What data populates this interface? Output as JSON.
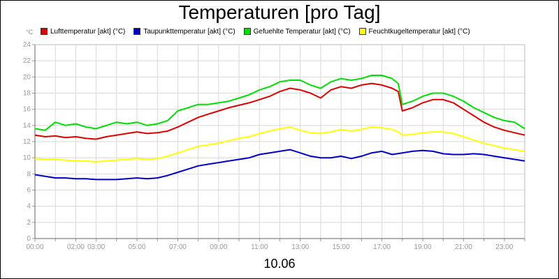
{
  "chart_data": {
    "type": "line",
    "title": "Temperaturen [pro Tag]",
    "unit_label": "°C",
    "date_label": "10.06",
    "xlim": [
      0,
      24
    ],
    "ylim": [
      0,
      24
    ],
    "y_ticks": [
      0,
      2,
      4,
      6,
      8,
      10,
      12,
      14,
      16,
      18,
      20,
      22,
      24
    ],
    "x_ticks": [
      {
        "h": 0,
        "label": "00:00"
      },
      {
        "h": 2,
        "label": "02:00"
      },
      {
        "h": 3,
        "label": "03:00"
      },
      {
        "h": 5,
        "label": "05:00"
      },
      {
        "h": 7,
        "label": "07:00"
      },
      {
        "h": 9,
        "label": "09:00"
      },
      {
        "h": 11,
        "label": "11:00"
      },
      {
        "h": 13,
        "label": "13:00"
      },
      {
        "h": 15,
        "label": "15:00"
      },
      {
        "h": 17,
        "label": "17:00"
      },
      {
        "h": 19,
        "label": "19:00"
      },
      {
        "h": 21,
        "label": "21:00"
      },
      {
        "h": 23,
        "label": "23:00"
      }
    ],
    "grid": true,
    "legend_position": "top",
    "series": [
      {
        "name": "Lufttemperatur [akt] (°C)",
        "color": "#e00000",
        "x": [
          0,
          0.5,
          1,
          1.5,
          2,
          2.5,
          3,
          3.5,
          4,
          4.5,
          5,
          5.5,
          6,
          6.5,
          7,
          7.5,
          8,
          8.5,
          9,
          9.5,
          10,
          10.5,
          11,
          11.5,
          12,
          12.5,
          13,
          13.5,
          14,
          14.5,
          15,
          15.5,
          16,
          16.5,
          17,
          17.5,
          17.8,
          18,
          18.5,
          19,
          19.5,
          20,
          20.5,
          21,
          21.5,
          22,
          22.5,
          23,
          23.5,
          24
        ],
        "y": [
          12.8,
          12.6,
          12.7,
          12.5,
          12.6,
          12.4,
          12.3,
          12.6,
          12.8,
          13.0,
          13.2,
          13.0,
          13.1,
          13.3,
          13.8,
          14.4,
          15.0,
          15.4,
          15.8,
          16.2,
          16.5,
          16.8,
          17.2,
          17.6,
          18.2,
          18.6,
          18.4,
          18.0,
          17.4,
          18.4,
          18.8,
          18.6,
          19.0,
          19.2,
          19.0,
          18.6,
          18.2,
          15.8,
          16.2,
          16.8,
          17.2,
          17.2,
          16.8,
          16.0,
          15.2,
          14.4,
          13.8,
          13.4,
          13.1,
          12.8
        ]
      },
      {
        "name": "Taupunkttemperatur [akt] (°C)",
        "color": "#0000cc",
        "x": [
          0,
          0.5,
          1,
          1.5,
          2,
          2.5,
          3,
          3.5,
          4,
          4.5,
          5,
          5.5,
          6,
          6.5,
          7,
          7.5,
          8,
          8.5,
          9,
          9.5,
          10,
          10.5,
          11,
          11.5,
          12,
          12.5,
          13,
          13.5,
          14,
          14.5,
          15,
          15.5,
          16,
          16.5,
          17,
          17.5,
          18,
          18.5,
          19,
          19.5,
          20,
          20.5,
          21,
          21.5,
          22,
          22.5,
          23,
          23.5,
          24
        ],
        "y": [
          7.9,
          7.7,
          7.5,
          7.5,
          7.4,
          7.4,
          7.3,
          7.3,
          7.3,
          7.4,
          7.5,
          7.4,
          7.5,
          7.8,
          8.2,
          8.6,
          9.0,
          9.2,
          9.4,
          9.6,
          9.8,
          10.0,
          10.4,
          10.6,
          10.8,
          11.0,
          10.6,
          10.2,
          10.0,
          10.0,
          10.2,
          9.9,
          10.2,
          10.6,
          10.8,
          10.4,
          10.6,
          10.8,
          10.9,
          10.8,
          10.5,
          10.4,
          10.4,
          10.5,
          10.4,
          10.2,
          10.0,
          9.8,
          9.6
        ]
      },
      {
        "name": "Gefuehlte Temperatur [akt] (°C)",
        "color": "#00e000",
        "x": [
          0,
          0.5,
          1,
          1.5,
          2,
          2.5,
          3,
          3.5,
          4,
          4.5,
          5,
          5.5,
          6,
          6.5,
          7,
          7.5,
          8,
          8.5,
          9,
          9.5,
          10,
          10.5,
          11,
          11.5,
          12,
          12.5,
          13,
          13.5,
          14,
          14.5,
          15,
          15.5,
          16,
          16.5,
          17,
          17.5,
          17.8,
          18,
          18.5,
          19,
          19.5,
          20,
          20.5,
          21,
          21.5,
          22,
          22.5,
          23,
          23.5,
          24
        ],
        "y": [
          13.6,
          13.4,
          14.4,
          14.0,
          14.2,
          13.8,
          13.6,
          14.0,
          14.4,
          14.2,
          14.4,
          14.0,
          14.2,
          14.6,
          15.8,
          16.2,
          16.6,
          16.6,
          16.8,
          17.0,
          17.4,
          17.8,
          18.4,
          18.8,
          19.4,
          19.6,
          19.6,
          19.0,
          18.6,
          19.4,
          19.8,
          19.6,
          19.8,
          20.2,
          20.2,
          19.8,
          19.2,
          16.6,
          17.0,
          17.6,
          18.0,
          18.0,
          17.6,
          17.0,
          16.2,
          15.6,
          15.0,
          14.6,
          14.4,
          13.6
        ]
      },
      {
        "name": "Feuchtkugeltemperatur [akt] (°C)",
        "color": "#ffff00",
        "x": [
          0,
          0.5,
          1,
          1.5,
          2,
          2.5,
          3,
          3.5,
          4,
          4.5,
          5,
          5.5,
          6,
          6.5,
          7,
          7.5,
          8,
          8.5,
          9,
          9.5,
          10,
          10.5,
          11,
          11.5,
          12,
          12.5,
          13,
          13.5,
          14,
          14.5,
          15,
          15.5,
          16,
          16.5,
          17,
          17.5,
          17.8,
          18,
          18.5,
          19,
          19.5,
          20,
          20.5,
          21,
          21.5,
          22,
          22.5,
          23,
          23.5,
          24
        ],
        "y": [
          9.9,
          9.8,
          9.8,
          9.7,
          9.6,
          9.6,
          9.5,
          9.6,
          9.7,
          9.8,
          9.9,
          9.8,
          9.9,
          10.2,
          10.6,
          11.0,
          11.4,
          11.6,
          11.8,
          12.1,
          12.4,
          12.6,
          13.0,
          13.3,
          13.6,
          13.8,
          13.4,
          13.1,
          13.0,
          13.2,
          13.5,
          13.3,
          13.5,
          13.8,
          13.7,
          13.5,
          13.2,
          12.8,
          12.9,
          13.1,
          13.2,
          13.2,
          13.0,
          12.6,
          12.2,
          11.8,
          11.5,
          11.2,
          11.0,
          10.8
        ]
      }
    ]
  }
}
